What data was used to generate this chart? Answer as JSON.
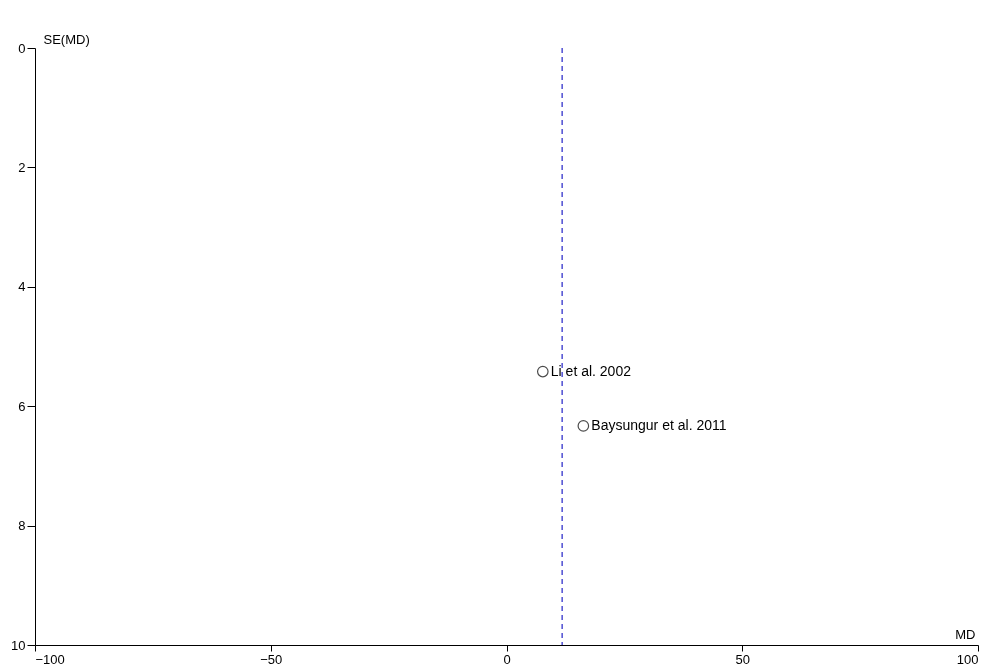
{
  "chart_data": {
    "type": "scatter",
    "xlabel": "MD",
    "ylabel": "SE(MD)",
    "x": [
      7.7,
      16.3
    ],
    "series": [
      {
        "color": "#000000",
        "values": [
          5.42,
          6.33
        ]
      }
    ],
    "marker": "circle",
    "xlim": [
      -100,
      100
    ],
    "xticks": [
      -100,
      -50,
      0,
      50,
      100
    ],
    "ylim": [
      10,
      0
    ],
    "yticks": [
      0,
      2,
      4,
      6,
      8,
      10
    ],
    "grid": false,
    "ref_lines": [
      {
        "axis": "x",
        "value": 11.8,
        "color": "#3333cc",
        "line_style": "dashed"
      }
    ],
    "annotations": [
      {
        "text": "Li et al. 2002",
        "x": 7.7,
        "y": 5.42
      },
      {
        "text": "Baysungur et al. 2011",
        "x": 16.3,
        "y": 6.33
      }
    ]
  }
}
